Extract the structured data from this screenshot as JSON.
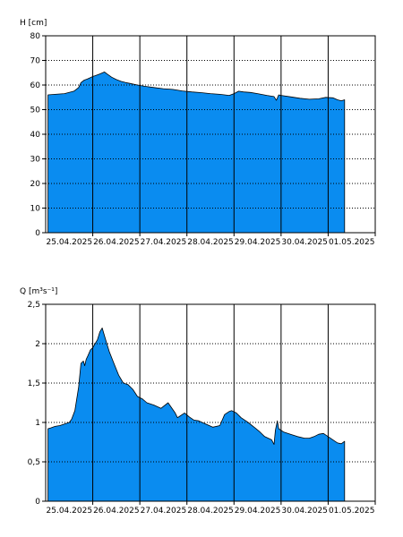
{
  "chart_data": [
    {
      "type": "area",
      "ylabel": "H [cm]",
      "ylim": [
        0,
        80
      ],
      "yticks": [
        "0",
        "10",
        "20",
        "30",
        "40",
        "50",
        "60",
        "70",
        "80"
      ],
      "xlim": [
        0,
        7.0
      ],
      "xticks": [
        "25.04.2025",
        "26.04.2025",
        "27.04.2025",
        "28.04.2025",
        "29.04.2025",
        "30.04.2025",
        "01.05.2025"
      ],
      "grid": true,
      "fill_color": "#0a8cf0",
      "series": [
        {
          "x": [
            0.05,
            0.2,
            0.4,
            0.6,
            0.7,
            0.75,
            0.82,
            0.88,
            0.95,
            1.0,
            1.05,
            1.15,
            1.25,
            1.3,
            1.4,
            1.5,
            1.6,
            1.7,
            1.8,
            1.95,
            2.1,
            2.3,
            2.5,
            2.7,
            2.9,
            3.1,
            3.3,
            3.5,
            3.7,
            3.9,
            4.0,
            4.1,
            4.2,
            4.35,
            4.5,
            4.7,
            4.85,
            4.9,
            4.95,
            5.0,
            5.2,
            5.4,
            5.6,
            5.8,
            5.95,
            6.1,
            6.2,
            6.28,
            6.35
          ],
          "y": [
            56,
            56.2,
            56.5,
            57.5,
            59,
            61,
            62,
            62.4,
            63,
            63.5,
            63.8,
            64.5,
            65.3,
            64.6,
            63.2,
            62.2,
            61.5,
            61,
            60.6,
            60,
            59.5,
            59,
            58.5,
            58.2,
            57.6,
            57.2,
            56.9,
            56.5,
            56.2,
            55.8,
            56.5,
            57.5,
            57.2,
            57,
            56.5,
            55.8,
            55.3,
            53.8,
            56,
            55.8,
            55.2,
            54.6,
            54.2,
            54.4,
            55,
            54.8,
            54,
            53.6,
            54
          ]
        }
      ]
    },
    {
      "type": "area",
      "ylabel": "Q [m³s⁻¹]",
      "ylim": [
        0,
        2.5
      ],
      "yticks": [
        "0",
        "0,5",
        "1",
        "1,5",
        "2",
        "2,5"
      ],
      "xlim": [
        0,
        7.0
      ],
      "xticks": [
        "25.04.2025",
        "26.04.2025",
        "27.04.2025",
        "28.04.2025",
        "29.04.2025",
        "30.04.2025",
        "01.05.2025"
      ],
      "grid": true,
      "fill_color": "#0a8cf0",
      "series": [
        {
          "x": [
            0.05,
            0.1,
            0.2,
            0.3,
            0.4,
            0.5,
            0.55,
            0.62,
            0.7,
            0.75,
            0.8,
            0.83,
            0.86,
            0.9,
            0.95,
            1.0,
            1.05,
            1.1,
            1.15,
            1.2,
            1.25,
            1.3,
            1.35,
            1.45,
            1.55,
            1.65,
            1.75,
            1.85,
            1.95,
            2.05,
            2.15,
            2.3,
            2.45,
            2.6,
            2.75,
            2.8,
            2.85,
            2.95,
            3.05,
            3.15,
            3.25,
            3.4,
            3.55,
            3.7,
            3.8,
            3.9,
            3.95,
            4.05,
            4.15,
            4.3,
            4.45,
            4.55,
            4.65,
            4.8,
            4.85,
            4.88,
            4.92,
            4.95,
            5.0,
            5.05,
            5.2,
            5.35,
            5.5,
            5.6,
            5.7,
            5.8,
            5.9,
            6.0,
            6.1,
            6.2,
            6.28,
            6.35
          ],
          "y": [
            0.92,
            0.93,
            0.95,
            0.96,
            0.98,
            1.0,
            1.04,
            1.15,
            1.45,
            1.75,
            1.78,
            1.72,
            1.8,
            1.85,
            1.92,
            1.95,
            2.0,
            2.05,
            2.15,
            2.2,
            2.1,
            2.0,
            1.9,
            1.75,
            1.6,
            1.5,
            1.48,
            1.42,
            1.33,
            1.3,
            1.25,
            1.22,
            1.18,
            1.25,
            1.12,
            1.06,
            1.08,
            1.12,
            1.07,
            1.03,
            1.02,
            0.98,
            0.94,
            0.96,
            1.1,
            1.14,
            1.15,
            1.12,
            1.06,
            1.0,
            0.93,
            0.88,
            0.82,
            0.78,
            0.72,
            0.9,
            1.02,
            0.92,
            0.9,
            0.88,
            0.85,
            0.82,
            0.8,
            0.8,
            0.82,
            0.85,
            0.86,
            0.82,
            0.78,
            0.74,
            0.73,
            0.76
          ]
        }
      ]
    }
  ]
}
